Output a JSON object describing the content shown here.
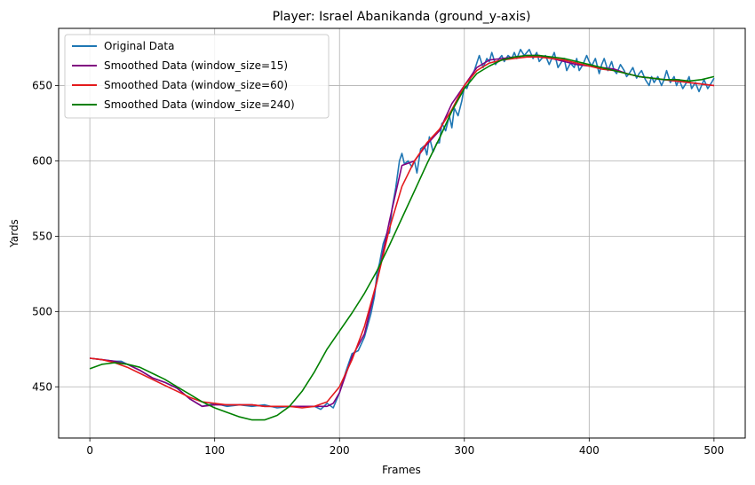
{
  "chart_data": {
    "type": "line",
    "title": "Player: Israel Abanikanda (ground_y-axis)",
    "xlabel": "Frames",
    "ylabel": "Yards",
    "xlim": [
      -25,
      525
    ],
    "ylim": [
      416,
      688
    ],
    "xticks": [
      0,
      100,
      200,
      300,
      400,
      500
    ],
    "yticks": [
      450,
      500,
      550,
      600,
      650
    ],
    "grid": true,
    "legend_position": "top-left",
    "series": [
      {
        "name": "Original Data",
        "color": "#1f77b4",
        "x": [
          0,
          10,
          20,
          25,
          30,
          40,
          50,
          60,
          70,
          80,
          90,
          95,
          100,
          110,
          120,
          130,
          140,
          150,
          160,
          170,
          180,
          185,
          190,
          195,
          200,
          205,
          210,
          215,
          220,
          225,
          228,
          230,
          232,
          235,
          238,
          240,
          242,
          245,
          248,
          250,
          252,
          255,
          258,
          260,
          262,
          265,
          268,
          270,
          272,
          275,
          278,
          280,
          282,
          285,
          288,
          290,
          292,
          295,
          298,
          300,
          302,
          305,
          308,
          310,
          312,
          315,
          318,
          320,
          322,
          325,
          328,
          330,
          332,
          335,
          338,
          340,
          342,
          345,
          348,
          350,
          352,
          355,
          358,
          360,
          362,
          365,
          368,
          370,
          372,
          375,
          378,
          380,
          382,
          385,
          388,
          390,
          392,
          395,
          398,
          400,
          402,
          405,
          408,
          410,
          412,
          415,
          418,
          420,
          422,
          425,
          428,
          430,
          432,
          435,
          438,
          440,
          442,
          445,
          448,
          450,
          452,
          455,
          458,
          460,
          462,
          465,
          468,
          470,
          472,
          475,
          478,
          480,
          482,
          485,
          488,
          490,
          492,
          495,
          498,
          500
        ],
        "y": [
          469,
          468,
          467,
          467,
          465,
          461,
          456,
          453,
          449,
          442,
          437,
          438,
          439,
          437,
          438,
          437,
          438,
          436,
          437,
          437,
          437,
          435,
          439,
          436,
          446,
          460,
          472,
          474,
          483,
          498,
          510,
          525,
          532,
          545,
          552,
          552,
          568,
          582,
          600,
          605,
          598,
          600,
          596,
          600,
          592,
          608,
          610,
          604,
          616,
          606,
          612,
          612,
          625,
          620,
          630,
          622,
          635,
          630,
          640,
          650,
          648,
          655,
          660,
          665,
          670,
          662,
          668,
          666,
          672,
          664,
          668,
          670,
          666,
          670,
          668,
          672,
          668,
          674,
          670,
          672,
          674,
          668,
          672,
          666,
          668,
          670,
          664,
          668,
          672,
          662,
          666,
          668,
          660,
          665,
          662,
          668,
          660,
          664,
          670,
          666,
          663,
          668,
          658,
          664,
          668,
          660,
          666,
          660,
          658,
          664,
          660,
          656,
          658,
          662,
          655,
          658,
          660,
          654,
          650,
          656,
          652,
          656,
          650,
          654,
          660,
          652,
          656,
          650,
          654,
          648,
          652,
          656,
          648,
          652,
          646,
          650,
          654,
          648,
          652,
          655
        ]
      },
      {
        "name": "Smoothed Data (window_size=15)",
        "color": "#800080",
        "x": [
          0,
          10,
          20,
          30,
          40,
          50,
          60,
          70,
          80,
          90,
          100,
          110,
          120,
          130,
          140,
          150,
          160,
          170,
          180,
          190,
          195,
          200,
          210,
          220,
          230,
          240,
          250,
          260,
          270,
          280,
          290,
          300,
          310,
          320,
          330,
          340,
          350,
          360,
          370,
          380,
          390,
          400,
          410,
          420,
          430,
          440,
          450,
          460,
          470,
          480,
          490,
          500
        ],
        "y": [
          469,
          468,
          467,
          465,
          461,
          456,
          453,
          449,
          442,
          437,
          438,
          438,
          438,
          438,
          437,
          437,
          437,
          437,
          437,
          437,
          439,
          446,
          470,
          485,
          520,
          560,
          597,
          600,
          611,
          620,
          638,
          650,
          662,
          667,
          668,
          669,
          670,
          670,
          668,
          666,
          664,
          663,
          662,
          661,
          658,
          656,
          655,
          654,
          653,
          652,
          651,
          650
        ]
      },
      {
        "name": "Smoothed Data (window_size=60)",
        "color": "#e41a1c",
        "x": [
          0,
          10,
          20,
          30,
          40,
          50,
          60,
          70,
          80,
          90,
          100,
          110,
          120,
          130,
          140,
          150,
          160,
          170,
          180,
          190,
          200,
          210,
          220,
          230,
          240,
          250,
          260,
          270,
          280,
          290,
          300,
          310,
          320,
          330,
          340,
          350,
          360,
          370,
          380,
          390,
          400,
          410,
          420,
          430,
          440,
          450,
          460,
          470,
          480,
          490,
          500
        ],
        "y": [
          469,
          468,
          466,
          463,
          459,
          455,
          451,
          447,
          443,
          440,
          439,
          438,
          438,
          438,
          437,
          437,
          437,
          436,
          437,
          440,
          450,
          468,
          490,
          520,
          555,
          583,
          600,
          612,
          621,
          634,
          650,
          660,
          665,
          667,
          668,
          669,
          669,
          668,
          667,
          665,
          663,
          661,
          660,
          658,
          656,
          655,
          654,
          653,
          652,
          651,
          650
        ]
      },
      {
        "name": "Smoothed Data (window_size=240)",
        "color": "#008000",
        "x": [
          0,
          10,
          20,
          30,
          40,
          50,
          60,
          70,
          80,
          90,
          100,
          110,
          120,
          130,
          140,
          150,
          160,
          170,
          180,
          190,
          200,
          210,
          220,
          230,
          240,
          250,
          260,
          270,
          280,
          290,
          300,
          310,
          320,
          330,
          340,
          350,
          360,
          370,
          380,
          390,
          400,
          410,
          420,
          430,
          440,
          450,
          460,
          470,
          480,
          490,
          500
        ],
        "y": [
          462,
          465,
          466,
          465,
          463,
          459,
          455,
          450,
          445,
          440,
          436,
          433,
          430,
          428,
          428,
          431,
          437,
          447,
          460,
          475,
          487,
          499,
          512,
          527,
          544,
          562,
          580,
          598,
          615,
          633,
          648,
          658,
          663,
          667,
          669,
          670,
          670,
          669,
          668,
          666,
          664,
          662,
          660,
          658,
          656,
          655,
          654,
          654,
          653,
          654,
          656
        ]
      }
    ]
  }
}
